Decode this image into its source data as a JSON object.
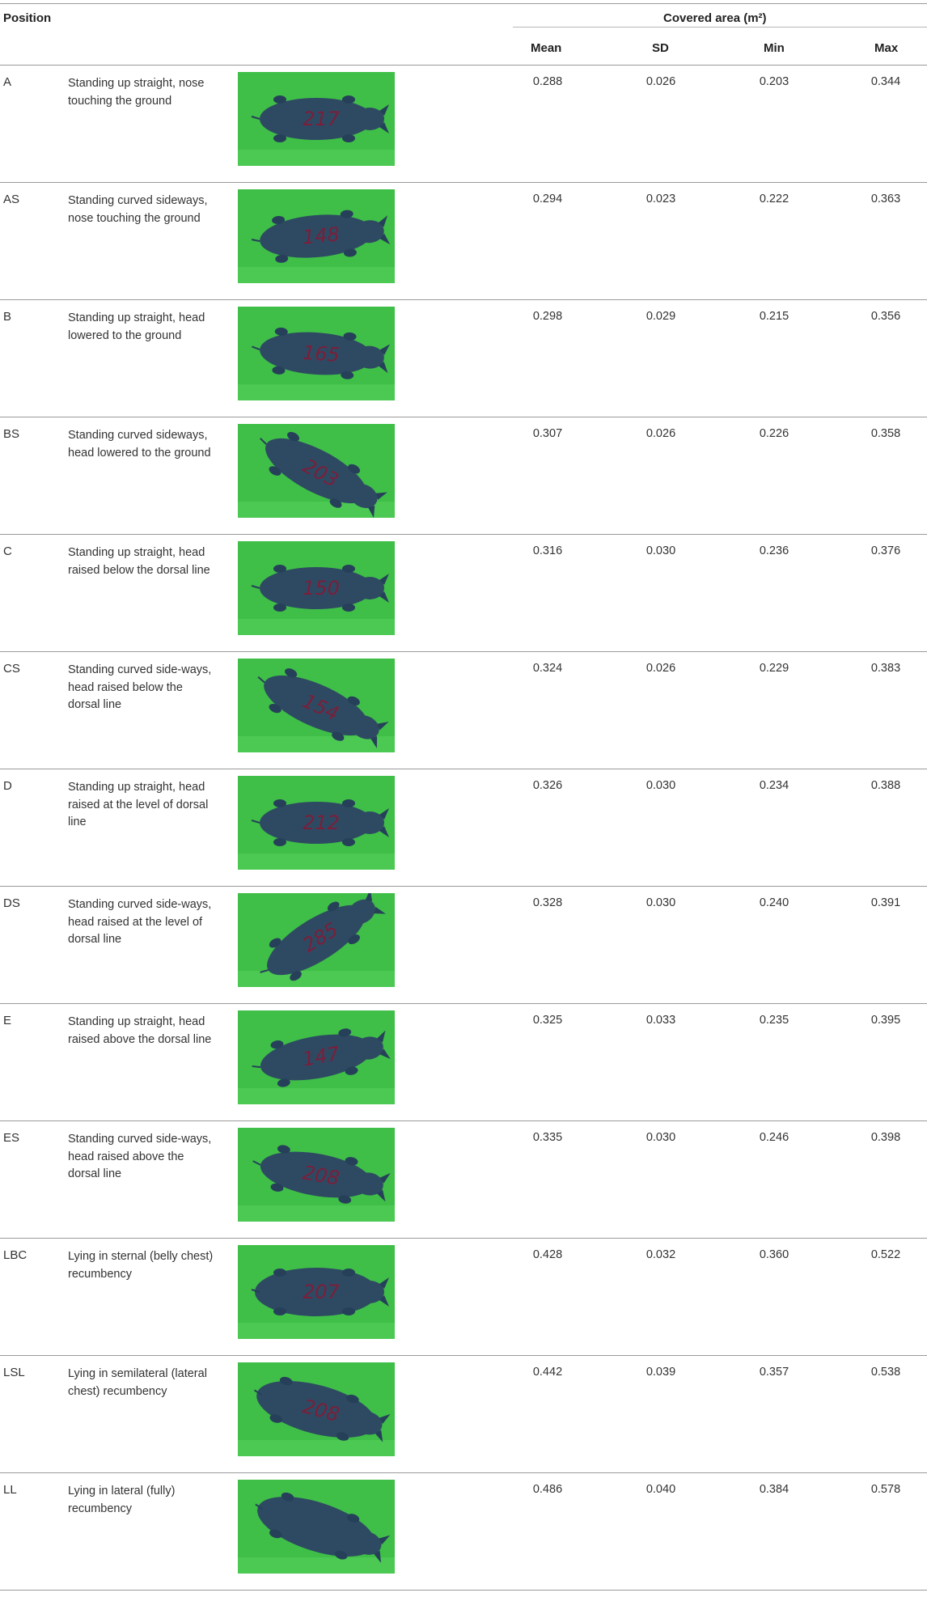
{
  "table": {
    "header": {
      "position": "Position",
      "group": "Covered area (m²)",
      "columns": [
        "Mean",
        "SD",
        "Min",
        "Max"
      ]
    },
    "rows": [
      {
        "code": "A",
        "desc": "Standing up straight, nose touching the ground",
        "mean": "0.288",
        "sd": "0.026",
        "min": "0.203",
        "max": "0.344",
        "photo_label": "217"
      },
      {
        "code": "AS",
        "desc": "Standing curved sideways, nose touching the ground",
        "mean": "0.294",
        "sd": "0.023",
        "min": "0.222",
        "max": "0.363",
        "photo_label": "148"
      },
      {
        "code": "B",
        "desc": "Standing up straight, head lowered to the ground",
        "mean": "0.298",
        "sd": "0.029",
        "min": "0.215",
        "max": "0.356",
        "photo_label": "165"
      },
      {
        "code": "BS",
        "desc": "Standing curved sideways, head lowered to the ground",
        "mean": "0.307",
        "sd": "0.026",
        "min": "0.226",
        "max": "0.358",
        "photo_label": "203"
      },
      {
        "code": "C",
        "desc": "Standing up straight, head raised below the dorsal line",
        "mean": "0.316",
        "sd": "0.030",
        "min": "0.236",
        "max": "0.376",
        "photo_label": "150"
      },
      {
        "code": "CS",
        "desc": "Standing curved side-ways, head raised below the dorsal line",
        "mean": "0.324",
        "sd": "0.026",
        "min": "0.229",
        "max": "0.383",
        "photo_label": "154"
      },
      {
        "code": "D",
        "desc": "Standing up straight, head raised at the level of dorsal line",
        "mean": "0.326",
        "sd": "0.030",
        "min": "0.234",
        "max": "0.388",
        "photo_label": "212"
      },
      {
        "code": "DS",
        "desc": "Standing curved side-ways, head raised at the level of dorsal line",
        "mean": "0.328",
        "sd": "0.030",
        "min": "0.240",
        "max": "0.391",
        "photo_label": "285"
      },
      {
        "code": "E",
        "desc": "Standing up straight, head raised above the dorsal line",
        "mean": "0.325",
        "sd": "0.033",
        "min": "0.235",
        "max": "0.395",
        "photo_label": "147"
      },
      {
        "code": "ES",
        "desc": "Standing curved side-ways, head raised above the dorsal line",
        "mean": "0.335",
        "sd": "0.030",
        "min": "0.246",
        "max": "0.398",
        "photo_label": "208"
      },
      {
        "code": "LBC",
        "desc": "Lying in sternal (belly chest) recumbency",
        "mean": "0.428",
        "sd": "0.032",
        "min": "0.360",
        "max": "0.522",
        "photo_label": "207"
      },
      {
        "code": "LSL",
        "desc": "Lying in semilateral (lateral chest) recumbency",
        "mean": "0.442",
        "sd": "0.039",
        "min": "0.357",
        "max": "0.538",
        "photo_label": "208"
      },
      {
        "code": "LL",
        "desc": "Lying in lateral (fully) recumbency",
        "mean": "0.486",
        "sd": "0.040",
        "min": "0.384",
        "max": "0.578",
        "photo_label": ""
      }
    ]
  },
  "colors": {
    "photo_background": "#3fbf47",
    "pig_body": "#2e4a63",
    "marker_ink": "#7a1f3a"
  }
}
